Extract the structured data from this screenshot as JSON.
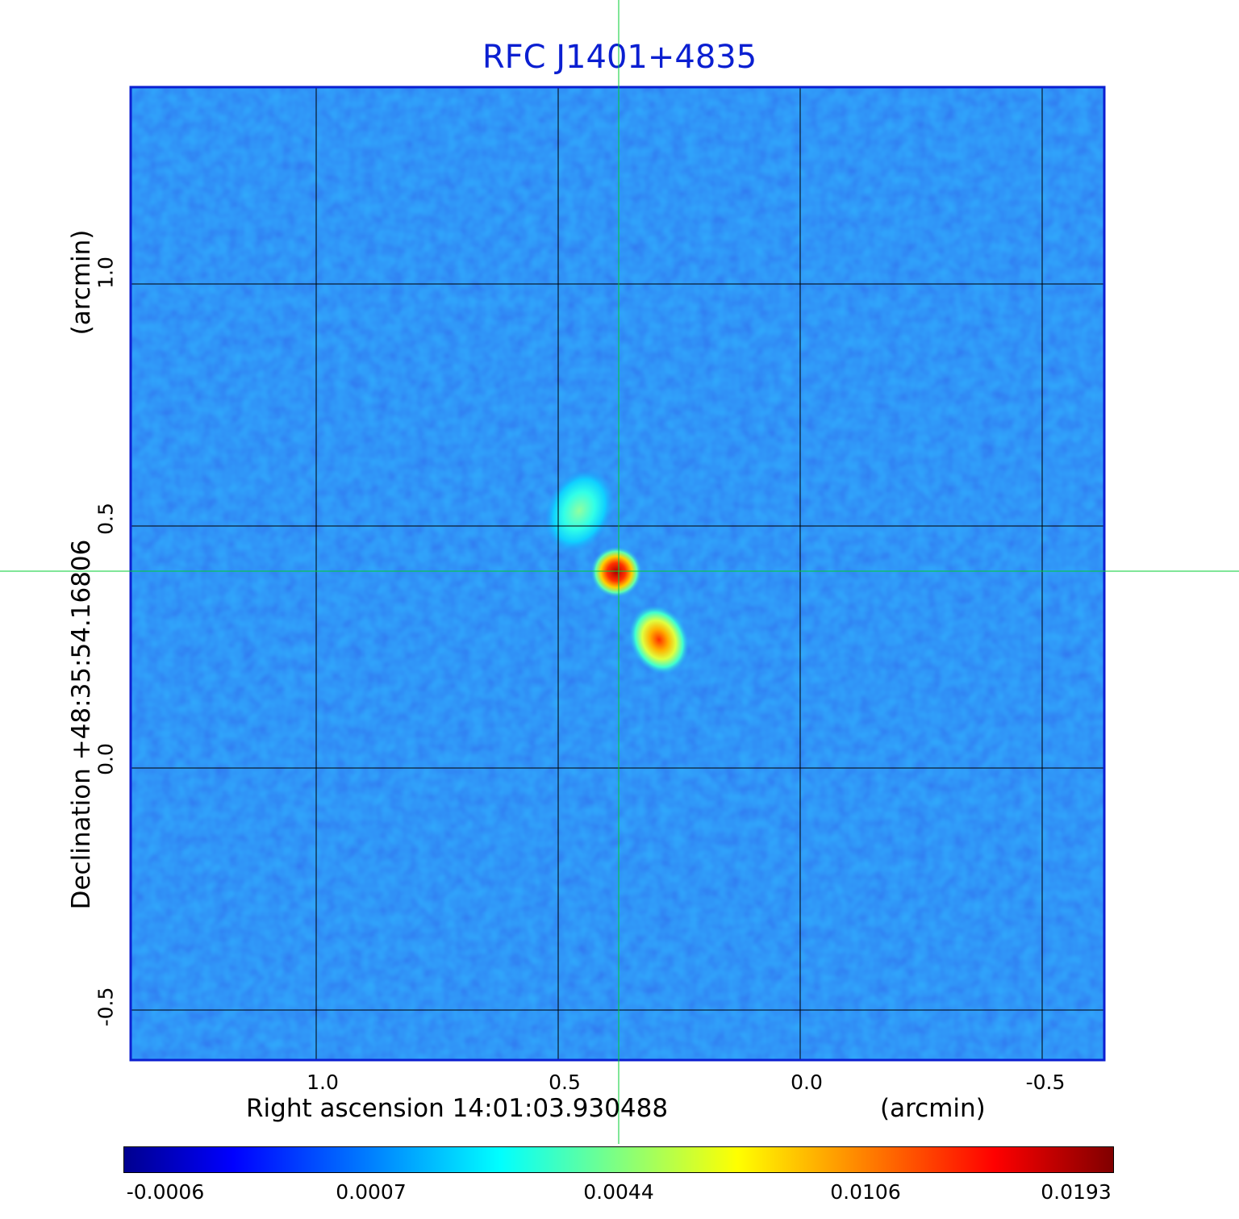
{
  "title": "RFC J1401+4835",
  "x_axis": {
    "label": "Right ascension  14:01:03.930488",
    "unit": "(arcmin)",
    "ticks": [
      "1.0",
      "0.5",
      "0.0",
      "-0.5"
    ]
  },
  "y_axis": {
    "label": "Declination  +48:35:54.16806",
    "unit": "(arcmin)",
    "ticks": [
      "1.0",
      "0.5",
      "0.0",
      "-0.5"
    ]
  },
  "colorbar": {
    "ticks": [
      "-0.0006",
      "0.0007",
      "0.0044",
      "0.0106",
      "0.0193"
    ],
    "colormap": "jet"
  },
  "colors": {
    "frame": "#0b1fd1",
    "crosshair": "#00cc33",
    "background_field": "#1f63f5"
  }
}
